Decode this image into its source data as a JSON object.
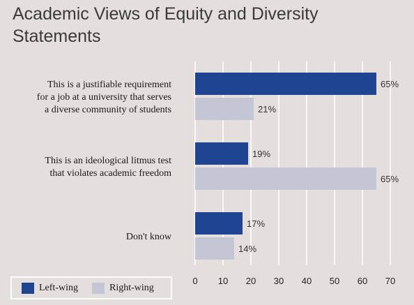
{
  "chart_data": {
    "type": "bar",
    "orientation": "horizontal",
    "title": "Academic Views of Equity and Diversity Statements",
    "categories": [
      [
        "This is a justifiable requirement",
        "for a job at a university that serves",
        "a diverse community of students"
      ],
      [
        "This is an ideological litmus test",
        "that violates academic freedom"
      ],
      [
        "Don't know"
      ]
    ],
    "series": [
      {
        "name": "Left-wing",
        "color": "#1f4592",
        "values": [
          65,
          19,
          17
        ]
      },
      {
        "name": "Right-wing",
        "color": "#c4c6d6",
        "values": [
          21,
          65,
          14
        ]
      }
    ],
    "value_suffix": "%",
    "xlim": [
      0,
      70
    ],
    "xticks": [
      0,
      10,
      20,
      30,
      40,
      50,
      60,
      70
    ],
    "grid": "vertical",
    "legend_position": "bottom-left"
  }
}
